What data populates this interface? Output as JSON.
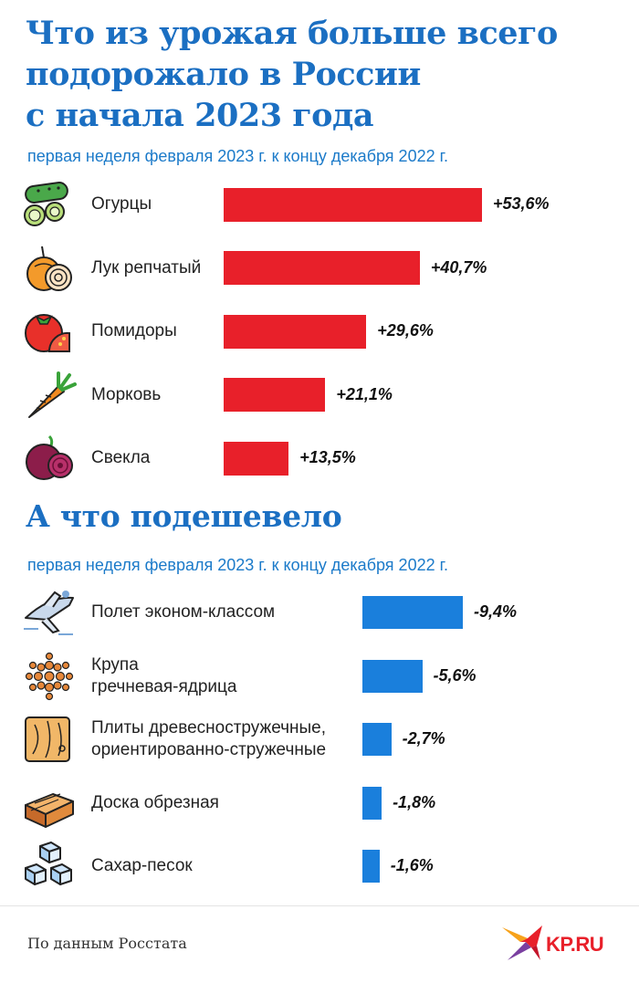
{
  "title_lines": [
    "Что из урожая больше всего",
    "подорожало в России",
    "с начала 2023 года"
  ],
  "subtitle_up": "первая неделя февраля 2023 г. к концу декабря 2022 г.",
  "section_down_title": "А что подешевело",
  "subtitle_down": "первая неделя февраля 2023 г. к концу декабря 2022 г.",
  "source": "По данным Росстата",
  "logo_text": "KP.RU",
  "colors": {
    "up_bar": "#e8202a",
    "down_bar": "#1a7fdc",
    "title": "#1b6fc2"
  },
  "chart_data": [
    {
      "type": "bar",
      "orientation": "horizontal",
      "categories": [
        "Огурцы",
        "Лук репчатый",
        "Помидоры",
        "Морковь",
        "Свекла"
      ],
      "values": [
        53.6,
        40.7,
        29.6,
        21.1,
        13.5
      ],
      "value_labels": [
        "+53,6%",
        "+40,7%",
        "+29,6%",
        "+21,1%",
        "+13,5%"
      ],
      "icons": [
        "cucumber-icon",
        "onion-icon",
        "tomato-icon",
        "carrot-icon",
        "beet-icon"
      ],
      "unit": "%"
    },
    {
      "type": "bar",
      "orientation": "horizontal",
      "categories": [
        "Полет эконом-классом",
        "Крупа\nгречневая-ядрица",
        "Плиты древесностружечные,\nориентированно-стружечные",
        "Доска обрезная",
        "Сахар-песок"
      ],
      "values": [
        -9.4,
        -5.6,
        -2.7,
        -1.8,
        -1.6
      ],
      "value_labels": [
        "-9,4%",
        "-5,6%",
        "-2,7%",
        "-1,8%",
        "-1,6%"
      ],
      "icons": [
        "airplane-icon",
        "buckwheat-icon",
        "chipboard-icon",
        "lumber-icon",
        "sugar-cubes-icon"
      ],
      "unit": "%"
    }
  ]
}
